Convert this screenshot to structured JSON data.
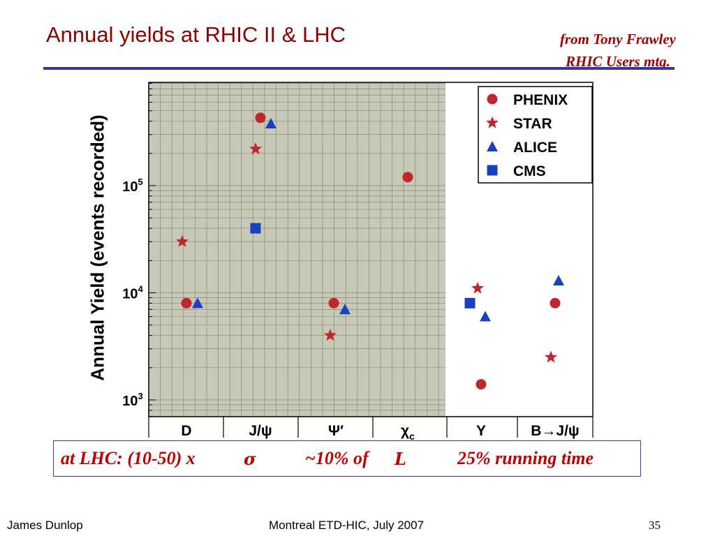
{
  "slide": {
    "title": "Annual yields at RHIC II & LHC",
    "credit_line1": "from Tony Frawley",
    "credit_line2": "RHIC Users mtg.",
    "note_part1": "at LHC:  (10-50) x",
    "note_sigma": "σ",
    "note_part2": "~10% of",
    "note_L": "L",
    "note_part3": "25% running time",
    "footer_author": "James Dunlop",
    "footer_event": "Montreal ETD-HIC, July 2007",
    "page_number": "35"
  },
  "colors": {
    "title": "#8b0000",
    "red_markers": "#c0262c",
    "blue_markers": "#1a3fbf",
    "rule": "#3333aa",
    "shaded_region": "#c8c8b8"
  },
  "chart_data": {
    "type": "scatter",
    "ylabel": "Annual Yield (events recorded)",
    "yscale": "log",
    "ylim": [
      800,
      800000
    ],
    "y_ticks": [
      "10^3",
      "10^4",
      "10^5"
    ],
    "categories": [
      "D",
      "J/ψ",
      "Ψ′",
      "χc",
      "Υ",
      "B→J/ψ"
    ],
    "grid": "RHIC region (D through χc) shaded with grid",
    "legend_position": "top-right",
    "series": [
      {
        "name": "PHENIX",
        "marker": "circle",
        "color": "#c0262c",
        "points": [
          {
            "x": "D",
            "y": 8000
          },
          {
            "x": "J/ψ",
            "y": 430000
          },
          {
            "x": "Ψ′",
            "y": 8000
          },
          {
            "x": "χc",
            "y": 120000
          },
          {
            "x": "Υ",
            "y": 1400
          },
          {
            "x": "B→J/ψ",
            "y": 8000
          }
        ]
      },
      {
        "name": "STAR",
        "marker": "star",
        "color": "#c0262c",
        "points": [
          {
            "x": "D",
            "y": 30000
          },
          {
            "x": "J/ψ",
            "y": 220000
          },
          {
            "x": "Ψ′",
            "y": 4000
          },
          {
            "x": "Υ",
            "y": 11000
          },
          {
            "x": "B→J/ψ",
            "y": 2500
          }
        ]
      },
      {
        "name": "ALICE",
        "marker": "triangle",
        "color": "#1a3fbf",
        "points": [
          {
            "x": "D",
            "y": 8000
          },
          {
            "x": "J/ψ",
            "y": 380000
          },
          {
            "x": "Ψ′",
            "y": 7000
          },
          {
            "x": "Υ",
            "y": 6000
          },
          {
            "x": "B→J/ψ",
            "y": 13000
          }
        ]
      },
      {
        "name": "CMS",
        "marker": "square",
        "color": "#1a3fbf",
        "points": [
          {
            "x": "J/ψ",
            "y": 40000
          },
          {
            "x": "Υ",
            "y": 8000
          }
        ]
      }
    ]
  }
}
